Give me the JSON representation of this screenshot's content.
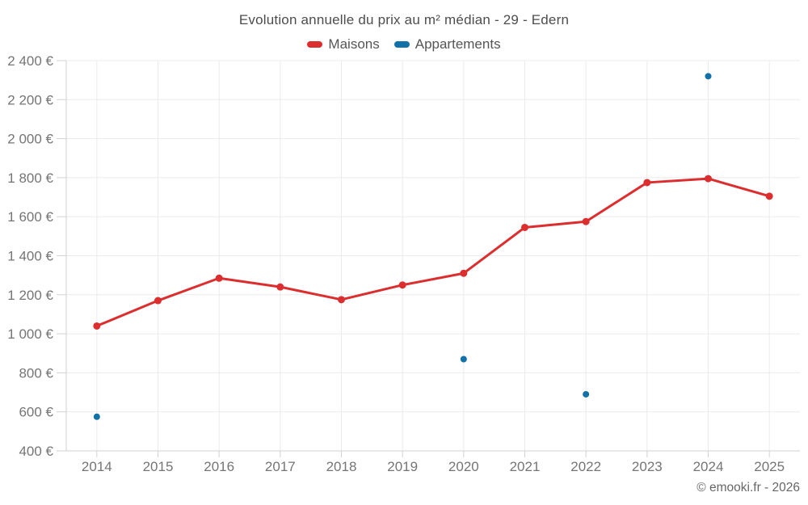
{
  "title": "Evolution annuelle du prix au m² médian - 29 - Edern",
  "footer": "© emooki.fr - 2026",
  "legend": [
    {
      "label": "Maisons",
      "color": "#dc2e2e"
    },
    {
      "label": "Appartements",
      "color": "#1271a7"
    }
  ],
  "chart_data": {
    "type": "line",
    "title": "Evolution annuelle du prix au m² médian - 29 - Edern",
    "categories": [
      "2014",
      "2015",
      "2016",
      "2017",
      "2018",
      "2019",
      "2020",
      "2021",
      "2022",
      "2023",
      "2024",
      "2025"
    ],
    "series": [
      {
        "name": "Maisons",
        "type": "line",
        "color": "#dc2e2e",
        "values": [
          1040,
          1170,
          1285,
          1240,
          1175,
          1250,
          1310,
          1545,
          1575,
          1775,
          1795,
          1705
        ]
      },
      {
        "name": "Appartements",
        "type": "scatter",
        "color": "#1271a7",
        "values": [
          575,
          null,
          null,
          null,
          null,
          null,
          870,
          null,
          690,
          null,
          2320,
          null
        ]
      }
    ],
    "ylim": [
      400,
      2400
    ],
    "ytick_values": [
      400,
      600,
      800,
      1000,
      1200,
      1400,
      1600,
      1800,
      2000,
      2200,
      2400
    ],
    "ytick_labels": [
      "400 €",
      "600 €",
      "800 €",
      "1 000 €",
      "1 200 €",
      "1 400 €",
      "1 600 €",
      "1 800 €",
      "2 000 €",
      "2 200 €",
      "2 400 €"
    ],
    "xlabel": "",
    "ylabel": "",
    "grid": true,
    "legend_position": "top",
    "colors": {
      "grid": "#ebebeb",
      "axis": "#d2d2d2",
      "tick_text": "#757575",
      "title_text": "#4d4d4d",
      "footer_text": "#666666"
    }
  }
}
